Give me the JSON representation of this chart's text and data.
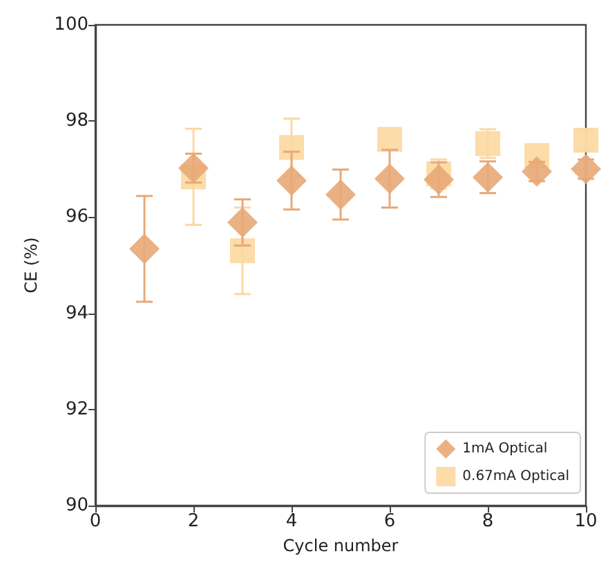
{
  "chart_data": {
    "type": "scatter",
    "xlabel": "Cycle number",
    "ylabel": "CE (%)",
    "x": [
      1,
      2,
      3,
      4,
      5,
      6,
      7,
      8,
      9,
      10
    ],
    "series": [
      {
        "name": "1mA Optical",
        "color": "#e8a877",
        "marker": "diamond",
        "values": [
          95.34,
          97.02,
          95.89,
          96.76,
          96.47,
          96.8,
          96.78,
          96.83,
          96.95,
          97.0
        ],
        "errors": [
          1.1,
          0.3,
          0.48,
          0.6,
          0.52,
          0.6,
          0.36,
          0.33,
          0.2,
          0.2
        ]
      },
      {
        "name": "0.67mA Optical",
        "color": "#fcd8a0",
        "marker": "square",
        "values": [
          null,
          96.84,
          95.3,
          97.45,
          null,
          97.62,
          96.9,
          97.53,
          97.28,
          97.6
        ],
        "errors": [
          null,
          1.0,
          0.9,
          0.6,
          null,
          null,
          0.3,
          0.3,
          null,
          0.2
        ]
      }
    ],
    "xlim": [
      0,
      10
    ],
    "xticks": [
      0,
      2,
      4,
      6,
      8,
      10
    ],
    "ylim": [
      90,
      100
    ],
    "yticks": [
      90,
      92,
      94,
      96,
      98,
      100
    ],
    "grid": false,
    "legend": "bottom right"
  }
}
